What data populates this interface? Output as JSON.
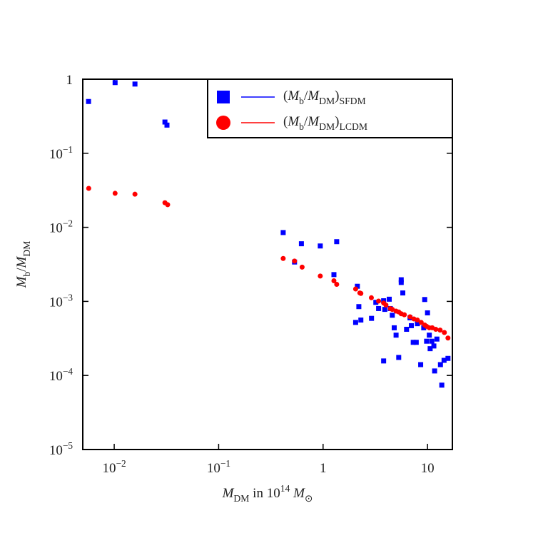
{
  "chart_data": {
    "type": "scatter",
    "xlabel": [
      {
        "text": "M",
        "italic": true
      },
      {
        "text": "DM",
        "shift": "sub"
      },
      {
        "text": " in 10"
      },
      {
        "text": "14",
        "shift": "super"
      },
      {
        "text": " "
      },
      {
        "text": "M",
        "italic": true
      },
      {
        "text": "⊙",
        "shift": "sub"
      }
    ],
    "ylabel": [
      {
        "text": "M",
        "italic": true
      },
      {
        "text": "b",
        "shift": "sub"
      },
      {
        "text": "/"
      },
      {
        "text": "M",
        "italic": true
      },
      {
        "text": "DM",
        "shift": "sub"
      }
    ],
    "xlog": true,
    "ylog": true,
    "xlim": [
      0.005,
      17.3
    ],
    "ylim": [
      1e-05,
      1
    ],
    "xticks": [
      {
        "value": 0.01,
        "label": "10",
        "power": "−2"
      },
      {
        "value": 0.1,
        "label": "10",
        "power": "−1"
      },
      1,
      10
    ],
    "yticks": [
      {
        "value": 1e-05,
        "label": "10",
        "power": "−5"
      },
      {
        "value": 0.0001,
        "label": "10",
        "power": "−4"
      },
      {
        "value": 0.001,
        "label": "10",
        "power": "−3"
      },
      {
        "value": 0.01,
        "label": "10",
        "power": "−2"
      },
      {
        "value": 0.1,
        "label": "10",
        "power": "−1"
      },
      1
    ],
    "legend": "upper right",
    "series": [
      {
        "name": [
          {
            "text": "("
          },
          {
            "text": "M",
            "italic": true
          },
          {
            "text": "b",
            "shift": "sub"
          },
          {
            "text": "/"
          },
          {
            "text": "M",
            "italic": true
          },
          {
            "text": "DM",
            "shift": "sub"
          },
          {
            "text": ")"
          },
          {
            "text": "SFDM",
            "shift": "sub"
          }
        ],
        "color": "#0000ff",
        "marker": "square",
        "x": [
          0.00568,
          0.0102,
          0.0158,
          0.0306,
          0.032,
          0.415,
          0.533,
          0.62,
          0.94,
          1.35,
          1.27,
          2.13,
          2.05,
          2.2,
          2.3,
          2.91,
          3.2,
          3.4,
          3.8,
          3.9,
          3.8,
          4.3,
          4.4,
          4.6,
          4.8,
          5.0,
          5.3,
          5.6,
          5.6,
          5.8,
          6.3,
          6.8,
          7.0,
          7.3,
          7.8,
          8.0,
          8.6,
          9.2,
          9.4,
          9.8,
          10.0,
          10.4,
          10.6,
          11.0,
          11.5,
          11.7,
          12.3,
          13.3,
          13.7,
          14.4,
          15.7
        ],
        "values": [
          0.5,
          0.9,
          0.86,
          0.264,
          0.24,
          0.0085,
          0.0034,
          0.006,
          0.0056,
          0.0064,
          0.0023,
          0.0016,
          0.00052,
          0.00085,
          0.00056,
          0.00059,
          0.00097,
          0.0008,
          0.00102,
          0.00078,
          0.000157,
          0.00107,
          0.0008,
          0.00065,
          0.00044,
          0.00035,
          0.000175,
          0.00196,
          0.0018,
          0.0013,
          0.00042,
          0.0006,
          0.00047,
          0.00028,
          0.00028,
          0.0005,
          0.00014,
          0.00044,
          0.00106,
          0.00029,
          0.0007,
          0.00035,
          0.00023,
          0.00029,
          0.00025,
          0.000115,
          0.00031,
          0.00014,
          7.4e-05,
          0.00016,
          0.00017
        ]
      },
      {
        "name": [
          {
            "text": "("
          },
          {
            "text": "M",
            "italic": true
          },
          {
            "text": "b",
            "shift": "sub"
          },
          {
            "text": "/"
          },
          {
            "text": "M",
            "italic": true
          },
          {
            "text": "DM",
            "shift": "sub"
          },
          {
            "text": ")"
          },
          {
            "text": "LCDM",
            "shift": "sub"
          }
        ],
        "color": "#ff0000",
        "marker": "circle",
        "x": [
          0.0057,
          0.0102,
          0.0158,
          0.0306,
          0.0325,
          0.415,
          0.533,
          0.63,
          0.94,
          1.27,
          1.35,
          2.05,
          2.25,
          2.3,
          2.9,
          3.4,
          3.8,
          4.0,
          4.4,
          4.6,
          5.0,
          5.3,
          5.6,
          6.0,
          6.8,
          7.4,
          8.0,
          8.7,
          9.4,
          9.8,
          10.4,
          11.1,
          12.0,
          13.2,
          14.5,
          15.7
        ],
        "values": [
          0.0336,
          0.0288,
          0.028,
          0.0215,
          0.0202,
          0.0038,
          0.0035,
          0.0029,
          0.0022,
          0.0019,
          0.0017,
          0.00147,
          0.0013,
          0.00128,
          0.00112,
          0.00101,
          0.00095,
          0.00089,
          0.0008,
          0.00078,
          0.00074,
          0.00072,
          0.00068,
          0.00066,
          0.00062,
          0.00058,
          0.00056,
          0.00052,
          0.00048,
          0.00046,
          0.00044,
          0.00044,
          0.00042,
          0.00041,
          0.00038,
          0.00032
        ]
      }
    ]
  }
}
